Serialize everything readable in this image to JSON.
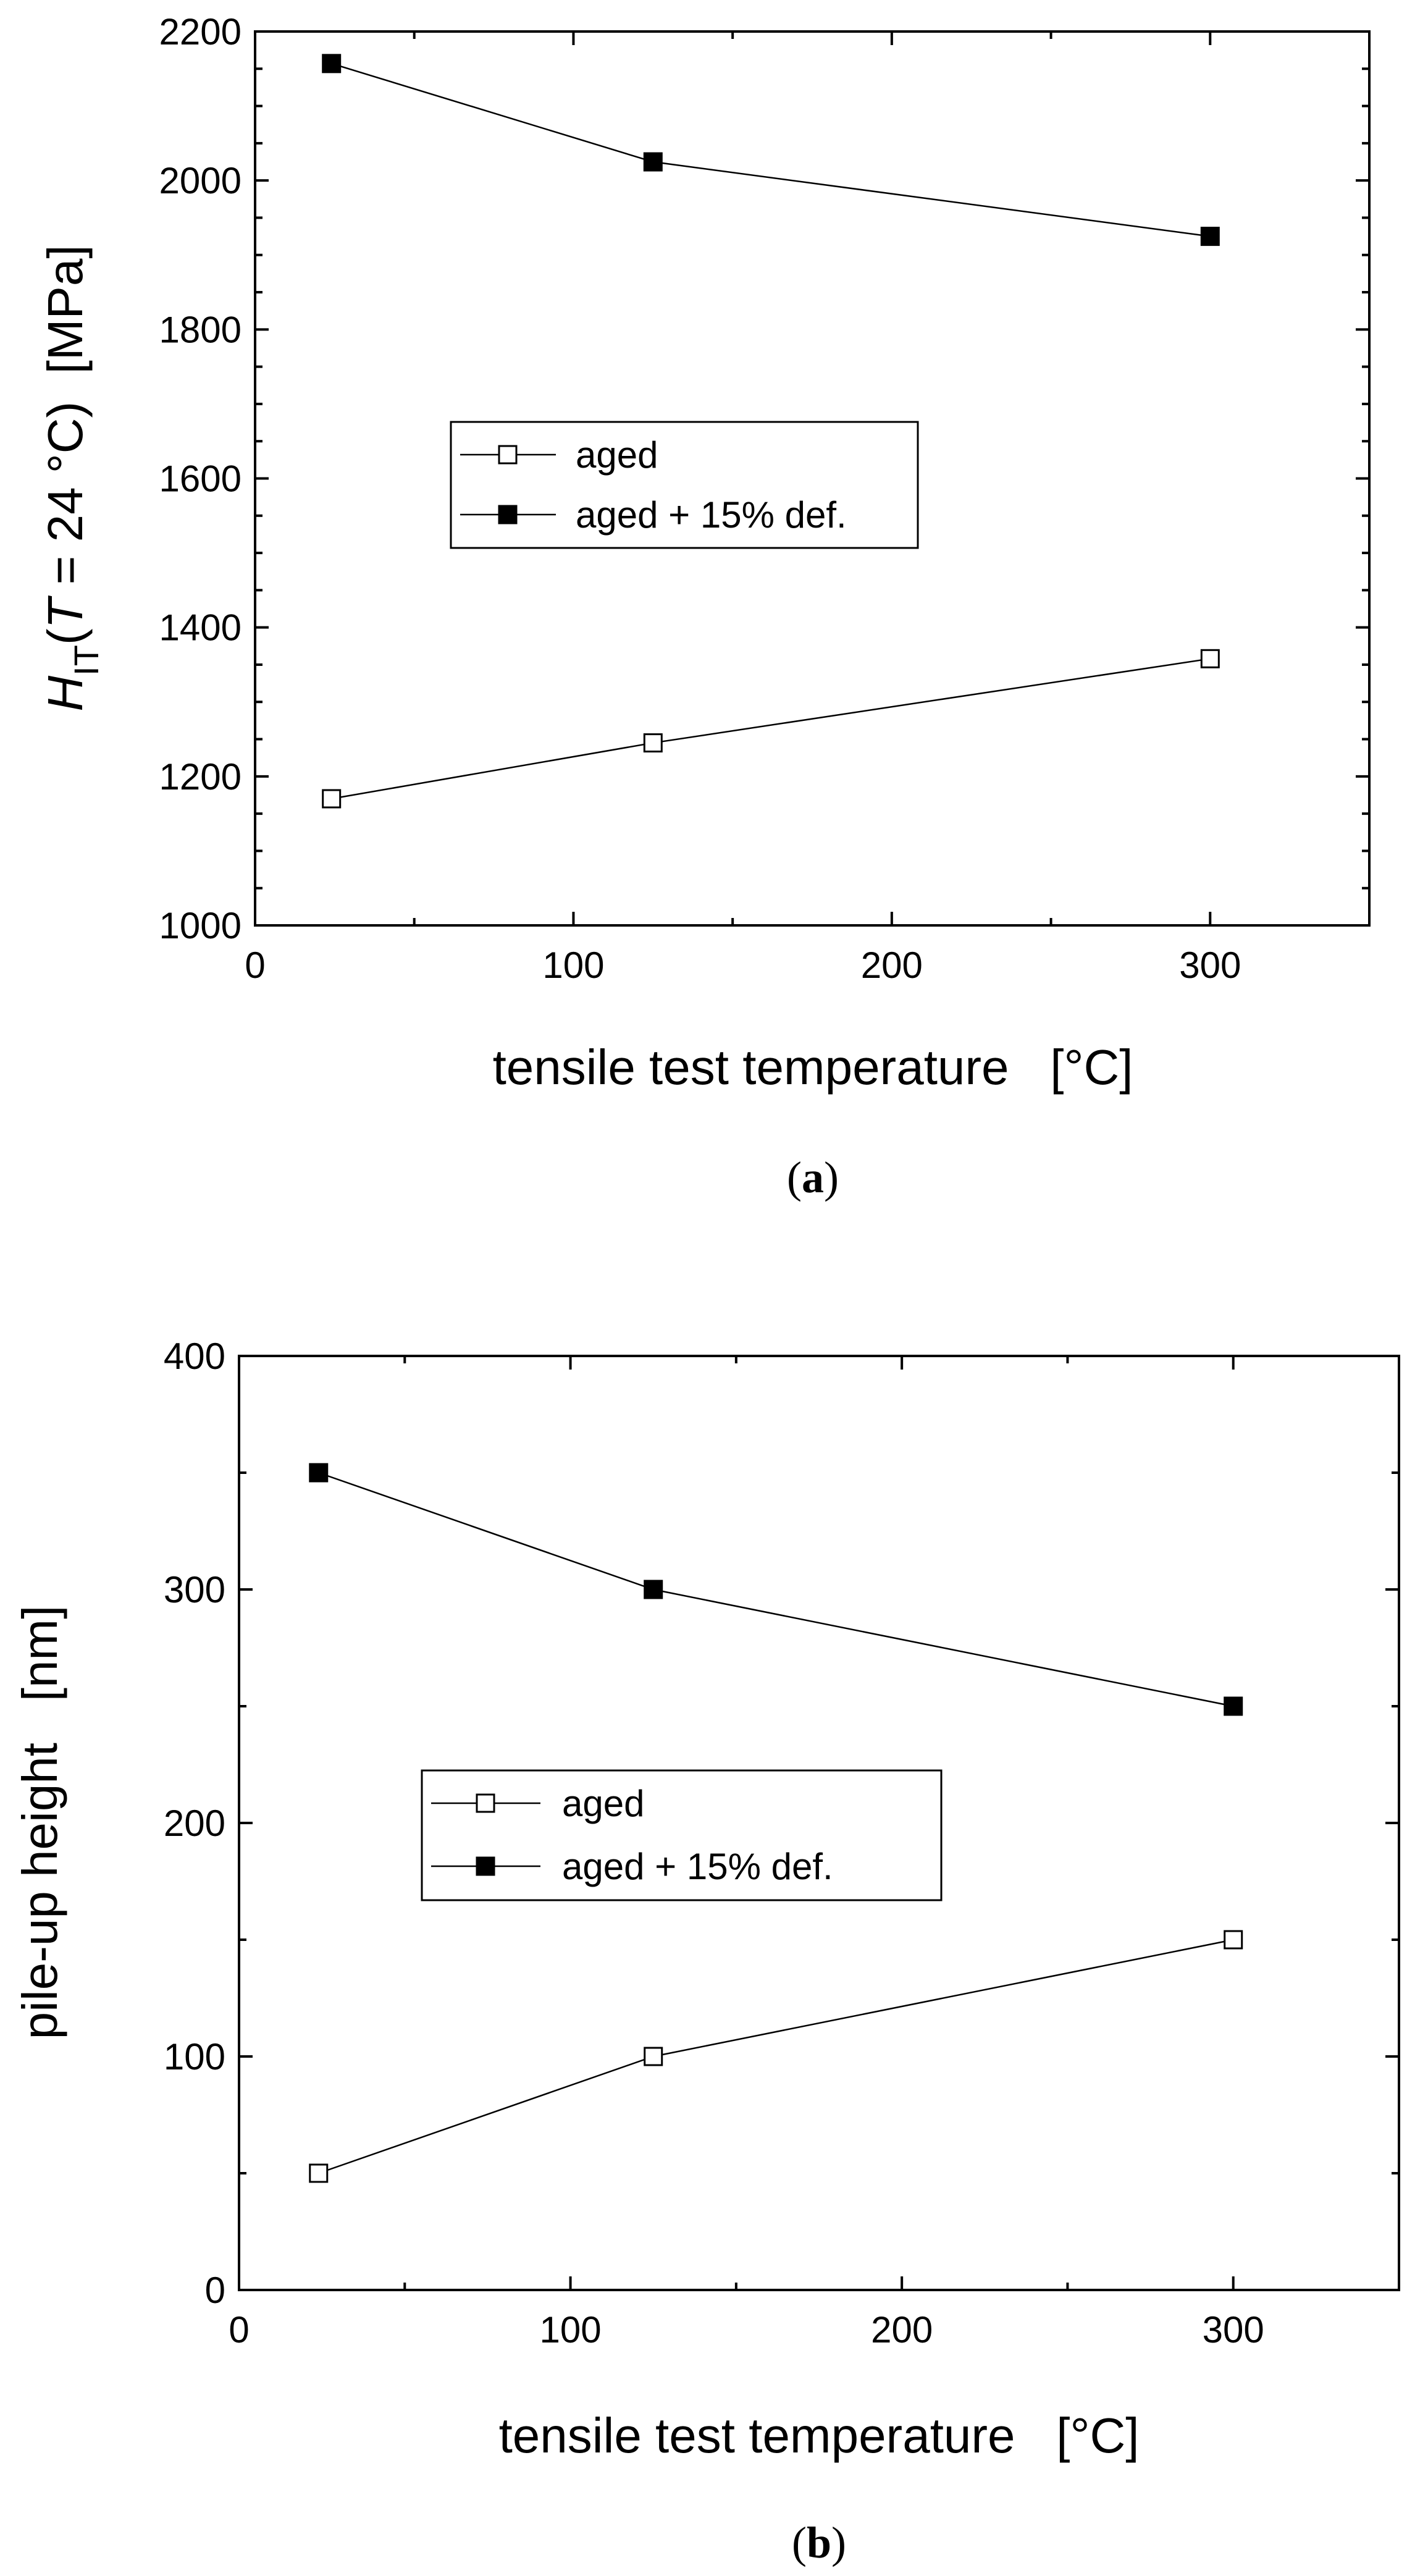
{
  "chart_data": [
    {
      "type": "line",
      "panel_label": "a",
      "xlabel": "tensile test temperature   [°C]",
      "ylabel": {
        "symbol": "H",
        "subscript": "IT",
        "paren_open": "(",
        "var": "T",
        "rest": " = 24 °C)  [MPa]"
      },
      "xlim": [
        0,
        350
      ],
      "ylim": [
        1000,
        2200
      ],
      "xticks": [
        0,
        100,
        200,
        300
      ],
      "yticks": [
        1000,
        1200,
        1400,
        1600,
        1800,
        2000,
        2200
      ],
      "legend_position": "center-left",
      "series": [
        {
          "name": "aged",
          "marker": "open-square",
          "x": [
            24,
            125,
            300
          ],
          "y": [
            1170,
            1245,
            1358
          ]
        },
        {
          "name": "aged + 15% def.",
          "marker": "filled-square",
          "x": [
            24,
            125,
            300
          ],
          "y": [
            2157,
            2025,
            1925
          ]
        }
      ]
    },
    {
      "type": "line",
      "panel_label": "b",
      "xlabel": "tensile test temperature   [°C]",
      "ylabel": "pile-up height   [nm]",
      "xlim": [
        0,
        350
      ],
      "ylim": [
        0,
        400
      ],
      "xticks": [
        0,
        100,
        200,
        300
      ],
      "yticks": [
        0,
        100,
        200,
        300,
        400
      ],
      "legend_position": "center-left",
      "series": [
        {
          "name": "aged",
          "marker": "open-square",
          "x": [
            24,
            125,
            300
          ],
          "y": [
            50,
            100,
            150
          ]
        },
        {
          "name": "aged + 15% def.",
          "marker": "filled-square",
          "x": [
            24,
            125,
            300
          ],
          "y": [
            350,
            300,
            250
          ]
        }
      ]
    }
  ]
}
